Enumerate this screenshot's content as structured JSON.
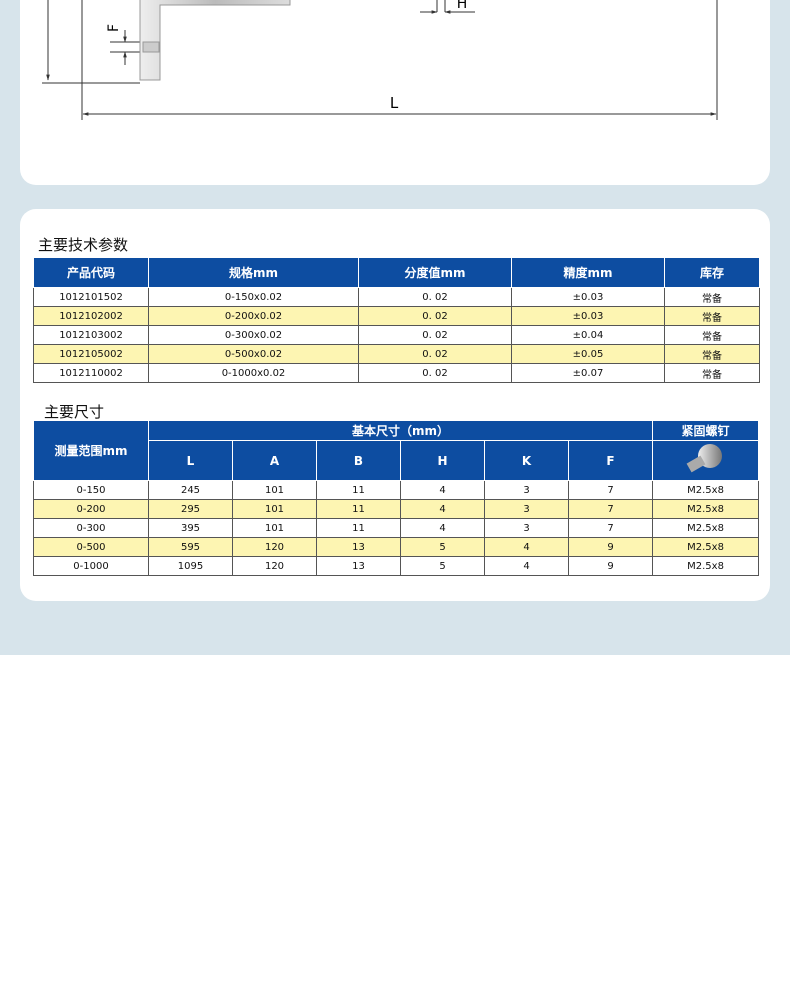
{
  "diagram": {
    "labels": {
      "f": "F",
      "h": "H",
      "l": "L"
    }
  },
  "spec_table": {
    "title": "主要技术参数",
    "headers": [
      "产品代码",
      "规格mm",
      "分度值mm",
      "精度mm",
      "库存"
    ],
    "rows": [
      [
        "1012101502",
        "0-150x0.02",
        "0. 02",
        "±0.03",
        "常备"
      ],
      [
        "1012102002",
        "0-200x0.02",
        "0. 02",
        "±0.03",
        "常备"
      ],
      [
        "1012103002",
        "0-300x0.02",
        "0. 02",
        "±0.04",
        "常备"
      ],
      [
        "1012105002",
        "0-500x0.02",
        "0. 02",
        "±0.05",
        "常备"
      ],
      [
        "1012110002",
        "0-1000x0.02",
        "0. 02",
        "±0.07",
        "常备"
      ]
    ]
  },
  "size_table": {
    "title": "主要尺寸",
    "range_header": "测量范围mm",
    "group_header": "基本尺寸（mm）",
    "screw_header": "紧固螺钉",
    "sub_headers": [
      "L",
      "A",
      "B",
      "H",
      "K",
      "F"
    ],
    "rows": [
      [
        "0-150",
        "245",
        "101",
        "11",
        "4",
        "3",
        "7",
        "M2.5x8"
      ],
      [
        "0-200",
        "295",
        "101",
        "11",
        "4",
        "3",
        "7",
        "M2.5x8"
      ],
      [
        "0-300",
        "395",
        "101",
        "11",
        "4",
        "3",
        "7",
        "M2.5x8"
      ],
      [
        "0-500",
        "595",
        "120",
        "13",
        "5",
        "4",
        "9",
        "M2.5x8"
      ],
      [
        "0-1000",
        "1095",
        "120",
        "13",
        "5",
        "4",
        "9",
        "M2.5x8"
      ]
    ]
  }
}
